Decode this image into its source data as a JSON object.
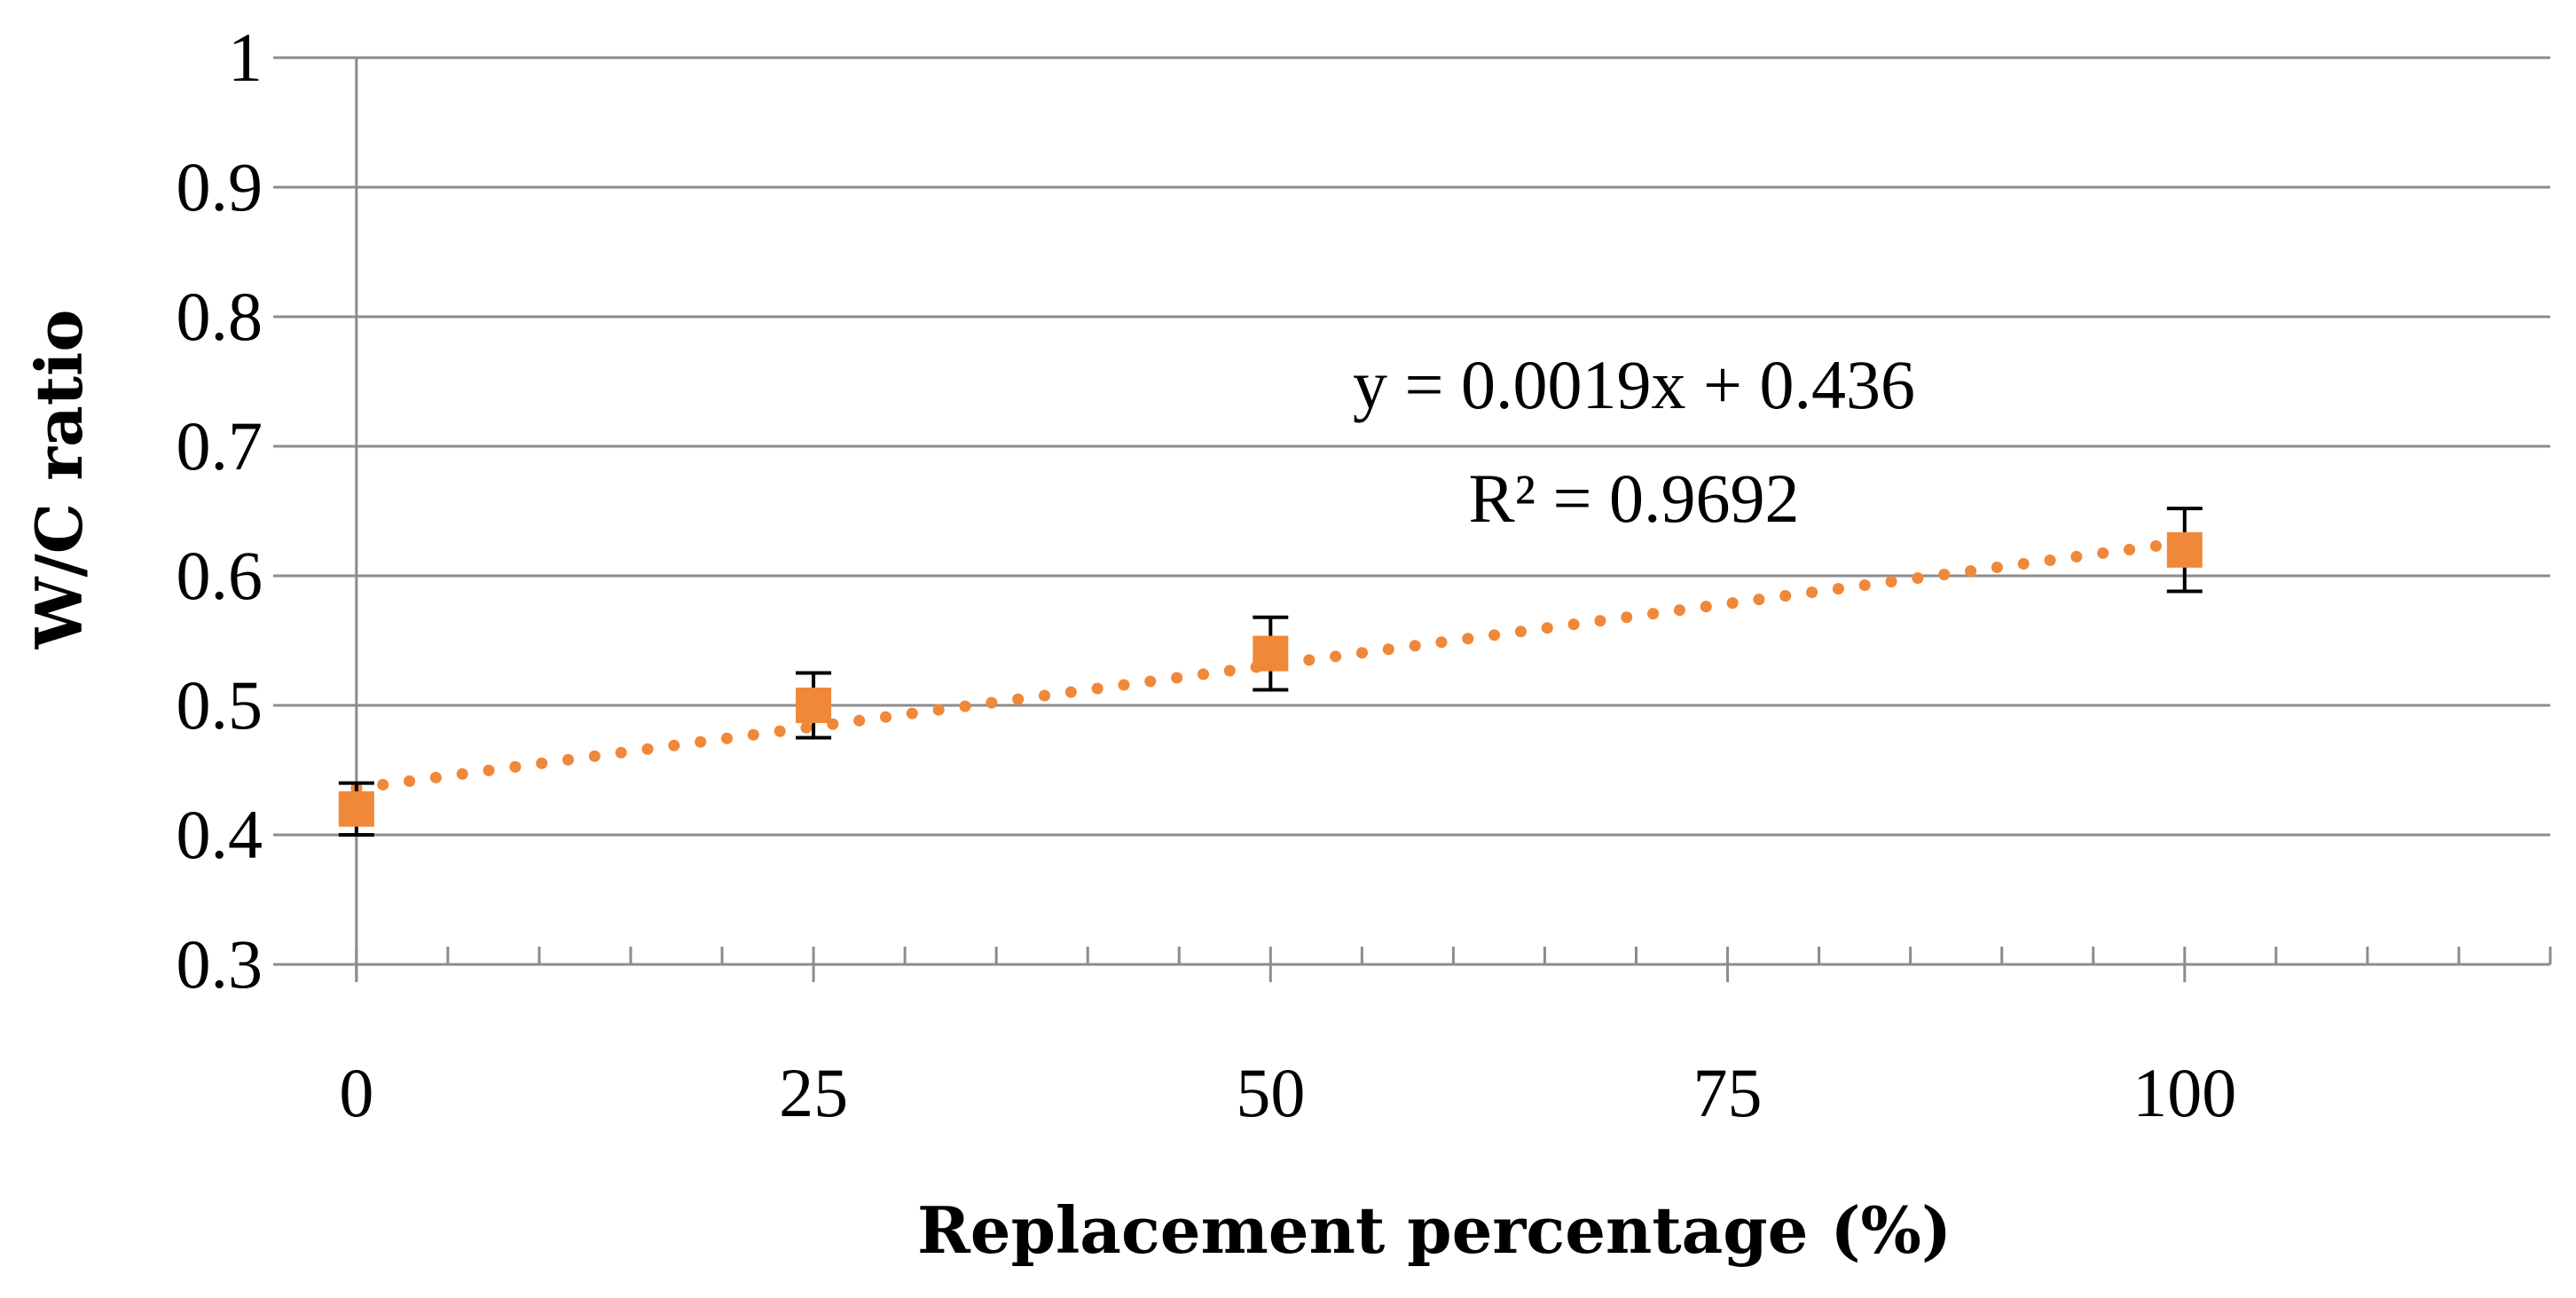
{
  "chart_data": {
    "type": "scatter",
    "title": "",
    "xlabel": "Replacement percentage (%)",
    "ylabel": "W/C ratio",
    "xlim": [
      -3,
      120
    ],
    "ylim": [
      0.3,
      1.0
    ],
    "grid": true,
    "x_tick_values": [
      0,
      25,
      50,
      75,
      100
    ],
    "x_tick_labels": [
      "0",
      "25",
      "50",
      "75",
      "100"
    ],
    "x_minor_tick_step": 5,
    "y_tick_values": [
      0.3,
      0.4,
      0.5,
      0.6,
      0.7,
      0.8,
      0.9,
      1.0
    ],
    "y_tick_labels": [
      "0.3",
      "0.4",
      "0.5",
      "0.6",
      "0.7",
      "0.8",
      "0.9",
      "1"
    ],
    "series": [
      {
        "name": "W/C ratio",
        "marker": "square",
        "color": "#F0883A",
        "x": [
          0,
          25,
          50,
          100
        ],
        "y": [
          0.42,
          0.5,
          0.54,
          0.62
        ],
        "error": [
          0.02,
          0.025,
          0.028,
          0.032
        ]
      }
    ],
    "trendline": {
      "type": "linear",
      "slope": 0.0019,
      "intercept": 0.436,
      "style": "dotted",
      "color": "#F0883A",
      "x_range": [
        0,
        100
      ]
    },
    "annotations": {
      "equation": "y = 0.0019x + 0.436",
      "r2_label": "R² = 0.9692"
    }
  }
}
